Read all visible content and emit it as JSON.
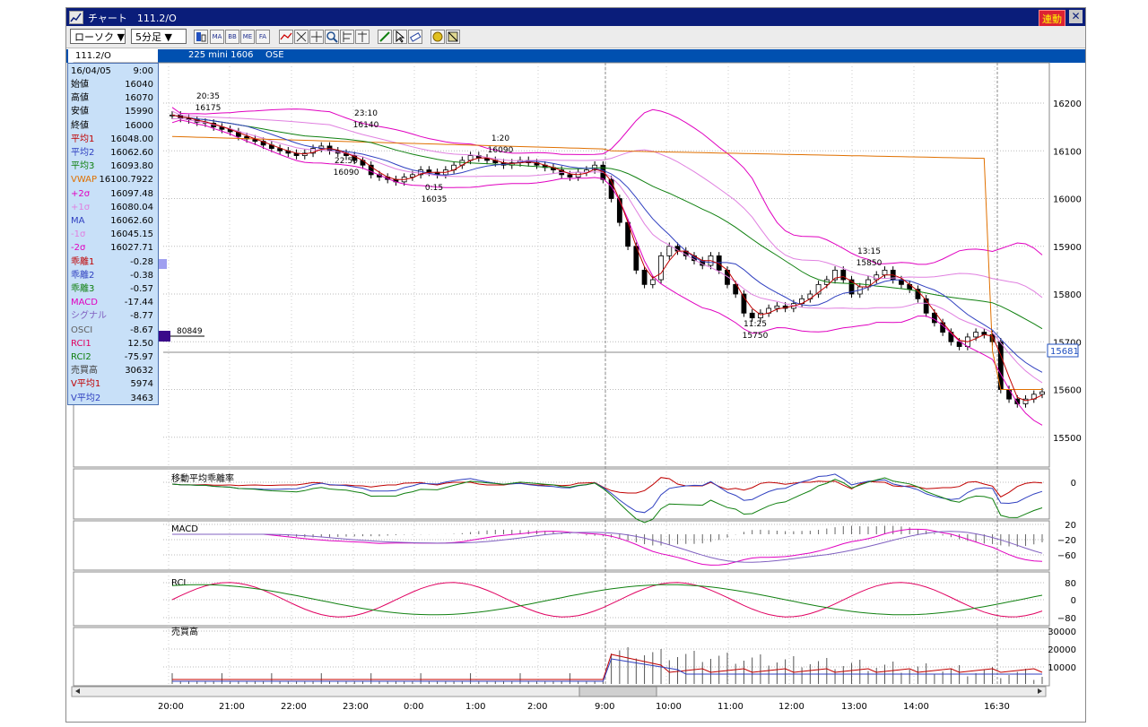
{
  "window": {
    "title": "チャート　111.2/O",
    "link_label": "連動",
    "close_label": "✕"
  },
  "toolbar": {
    "chart_type": "ローソク ▼",
    "interval": "5分足 ▼",
    "buttons": [
      "ma-icon",
      "bb-icon",
      "me-icon",
      "fa-icon",
      "line-icon",
      "zoom-icon",
      "search-icon",
      "scale-icon",
      "pen-icon",
      "cursor-icon",
      "eraser-icon",
      "bell-icon",
      "clear-icon"
    ],
    "button_labels": {
      "ma": "MA",
      "bb": "BB",
      "me": "ME",
      "fa": "FA"
    }
  },
  "infobar": {
    "code": "111.2/O",
    "name": "225 mini 1606",
    "exchange": "OSE"
  },
  "panel": {
    "date": "16/04/05",
    "time": "9:00",
    "rows": [
      {
        "label": "始値",
        "value": "16040",
        "color": "#000000"
      },
      {
        "label": "高値",
        "value": "16070",
        "color": "#000000"
      },
      {
        "label": "安値",
        "value": "15990",
        "color": "#000000"
      },
      {
        "label": "終値",
        "value": "16000",
        "color": "#000000"
      },
      {
        "label": "平均1",
        "value": "16048.00",
        "color": "#c00000"
      },
      {
        "label": "平均2",
        "value": "16062.60",
        "color": "#3040c0"
      },
      {
        "label": "平均3",
        "value": "16093.80",
        "color": "#108010"
      },
      {
        "label": "VWAP",
        "value": "16100.7922",
        "color": "#e07000"
      },
      {
        "label": "+2σ",
        "value": "16097.48",
        "color": "#e000c0"
      },
      {
        "label": "+1σ",
        "value": "16080.04",
        "color": "#e080e0"
      },
      {
        "label": "MA",
        "value": "16062.60",
        "color": "#3040c0"
      },
      {
        "label": "-1σ",
        "value": "16045.15",
        "color": "#e080e0"
      },
      {
        "label": "-2σ",
        "value": "16027.71",
        "color": "#e000c0"
      },
      {
        "label": "乖離1",
        "value": "-0.28",
        "color": "#c00000"
      },
      {
        "label": "乖離2",
        "value": "-0.38",
        "color": "#3040c0"
      },
      {
        "label": "乖離3",
        "value": "-0.57",
        "color": "#108010"
      },
      {
        "label": "MACD",
        "value": "-17.44",
        "color": "#e000c0"
      },
      {
        "label": "シグナル",
        "value": "-8.77",
        "color": "#8060c0"
      },
      {
        "label": "OSCI",
        "value": "-8.67",
        "color": "#606060"
      },
      {
        "label": "RCI1",
        "value": "12.50",
        "color": "#e00060"
      },
      {
        "label": "RCI2",
        "value": "-75.97",
        "color": "#108010"
      },
      {
        "label": "売買高",
        "value": "30632",
        "color": "#404040"
      },
      {
        "label": "V平均1",
        "value": "5974",
        "color": "#c00000"
      },
      {
        "label": "V平均2",
        "value": "3463",
        "color": "#3040c0"
      }
    ]
  },
  "price_axis": {
    "ticks": [
      "16200",
      "16100",
      "16000",
      "15900",
      "15800",
      "15700",
      "15600",
      "15500"
    ],
    "current_price": "15681"
  },
  "volume_marker": "80849",
  "annotations": [
    {
      "time": "20:35",
      "price": "16175"
    },
    {
      "time": "23:10",
      "price": "16140"
    },
    {
      "time": "22:50",
      "price": "16090"
    },
    {
      "time": "1:20",
      "price": "16090"
    },
    {
      "time": "0:15",
      "price": "16035"
    },
    {
      "time": "13:15",
      "price": "15850"
    },
    {
      "time": "11:25",
      "price": "15750"
    }
  ],
  "subcharts": {
    "deviation": {
      "label": "移動平均乖離率",
      "ticks": [
        "0"
      ]
    },
    "macd": {
      "label": "MACD",
      "ticks": [
        "20",
        "−20",
        "−60"
      ]
    },
    "rci": {
      "label": "RCI",
      "ticks": [
        "80",
        "0",
        "−80"
      ]
    },
    "volume": {
      "label": "売買高",
      "ticks": [
        "30000",
        "20000",
        "10000"
      ]
    }
  },
  "time_axis": [
    "20:00",
    "21:00",
    "22:00",
    "23:00",
    "0:00",
    "1:00",
    "2:00",
    "9:00",
    "10:00",
    "11:00",
    "12:00",
    "13:00",
    "14:00",
    "16:30"
  ],
  "colors": {
    "title_bg": "#0a1d7a",
    "infobar_bg": "#0050b0",
    "panel_bg": "#c8e0f8",
    "ma1": "#c00000",
    "ma2": "#3040c0",
    "ma3": "#108010",
    "vwap": "#e07000",
    "bb2": "#e000c0",
    "bb1": "#e080e0"
  }
}
